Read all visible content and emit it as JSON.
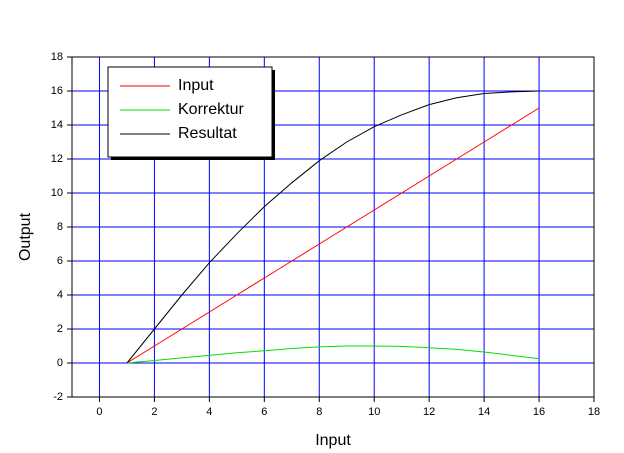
{
  "chart_data": {
    "type": "line",
    "x_label": "Input",
    "y_label": "Output",
    "x": [
      1,
      2,
      3,
      4,
      5,
      6,
      7,
      8,
      9,
      10,
      11,
      12,
      13,
      14,
      15,
      16
    ],
    "series": [
      {
        "name": "Input",
        "color": "#ff0000",
        "values": [
          0,
          1,
          2,
          3,
          4,
          5,
          6,
          7,
          8,
          9,
          10,
          11,
          12,
          13,
          14,
          15
        ]
      },
      {
        "name": "Korrektur",
        "color": "#00e000",
        "values": [
          0,
          0.15,
          0.3,
          0.45,
          0.6,
          0.72,
          0.85,
          0.95,
          1,
          1,
          0.98,
          0.9,
          0.8,
          0.65,
          0.45,
          0.25
        ]
      },
      {
        "name": "Resultat",
        "color": "#000000",
        "values": [
          0,
          2,
          4,
          5.9,
          7.6,
          9.2,
          10.6,
          11.9,
          13,
          13.9,
          14.6,
          15.2,
          15.6,
          15.85,
          15.95,
          16
        ]
      }
    ],
    "xlim": [
      -1,
      18
    ],
    "ylim": [
      -2,
      18
    ],
    "xticks": [
      0,
      2,
      4,
      6,
      8,
      10,
      12,
      14,
      16,
      18
    ],
    "yticks": [
      -2,
      0,
      2,
      4,
      6,
      8,
      10,
      12,
      14,
      16,
      18
    ],
    "grid": true,
    "grid_color": "#0000ff",
    "legend": "upper-left"
  }
}
